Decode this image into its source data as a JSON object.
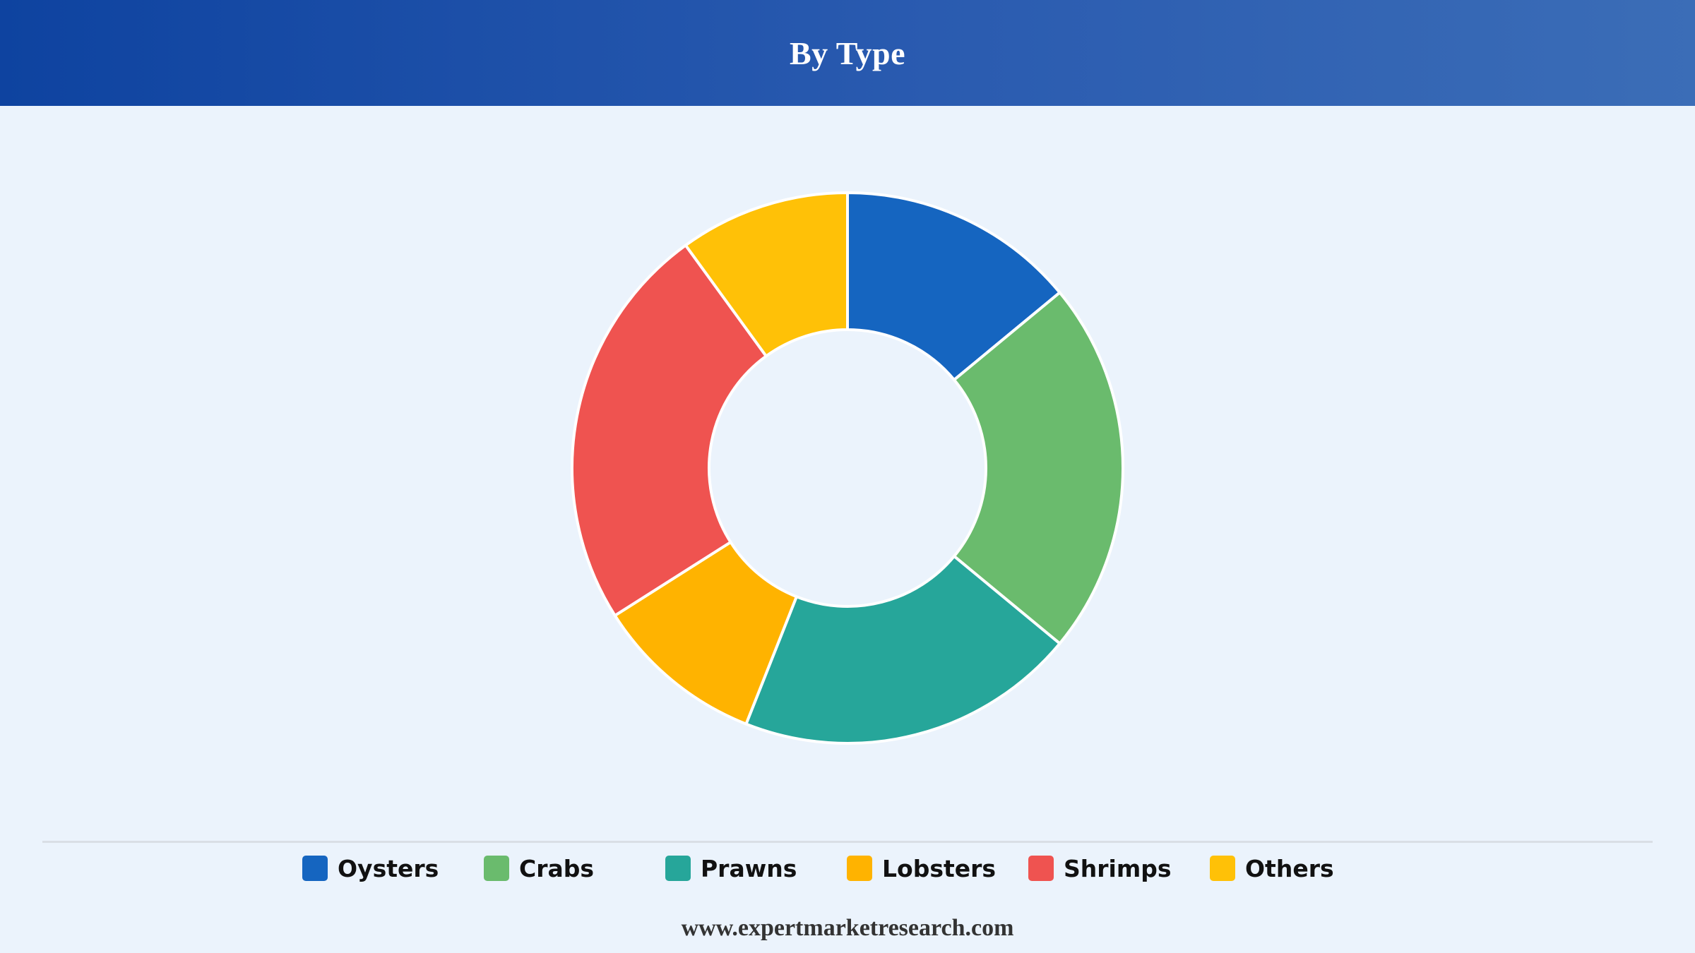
{
  "header": {
    "title": "By Type"
  },
  "chart_data": {
    "type": "pie",
    "variant": "donut",
    "title": "By Type",
    "categories": [
      "Oysters",
      "Crabs",
      "Prawns",
      "Lobsters",
      "Shrimps",
      "Others"
    ],
    "values": [
      14,
      22,
      20,
      10,
      24,
      10
    ],
    "unit": "%",
    "colors": [
      "#1565c0",
      "#6abb6d",
      "#26a69a",
      "#ffb300",
      "#ef5350",
      "#ffc107"
    ],
    "legend_position": "bottom",
    "start_angle": "top",
    "direction": "clockwise"
  },
  "legend": {
    "items": [
      {
        "label": "Oysters",
        "color": "#1565c0"
      },
      {
        "label": "Crabs",
        "color": "#6abb6d"
      },
      {
        "label": "Prawns",
        "color": "#26a69a"
      },
      {
        "label": "Lobsters",
        "color": "#ffb300"
      },
      {
        "label": "Shrimps",
        "color": "#ef5350"
      },
      {
        "label": "Others",
        "color": "#ffc107"
      }
    ]
  },
  "footer": {
    "source": "www.expertmarketresearch.com"
  }
}
